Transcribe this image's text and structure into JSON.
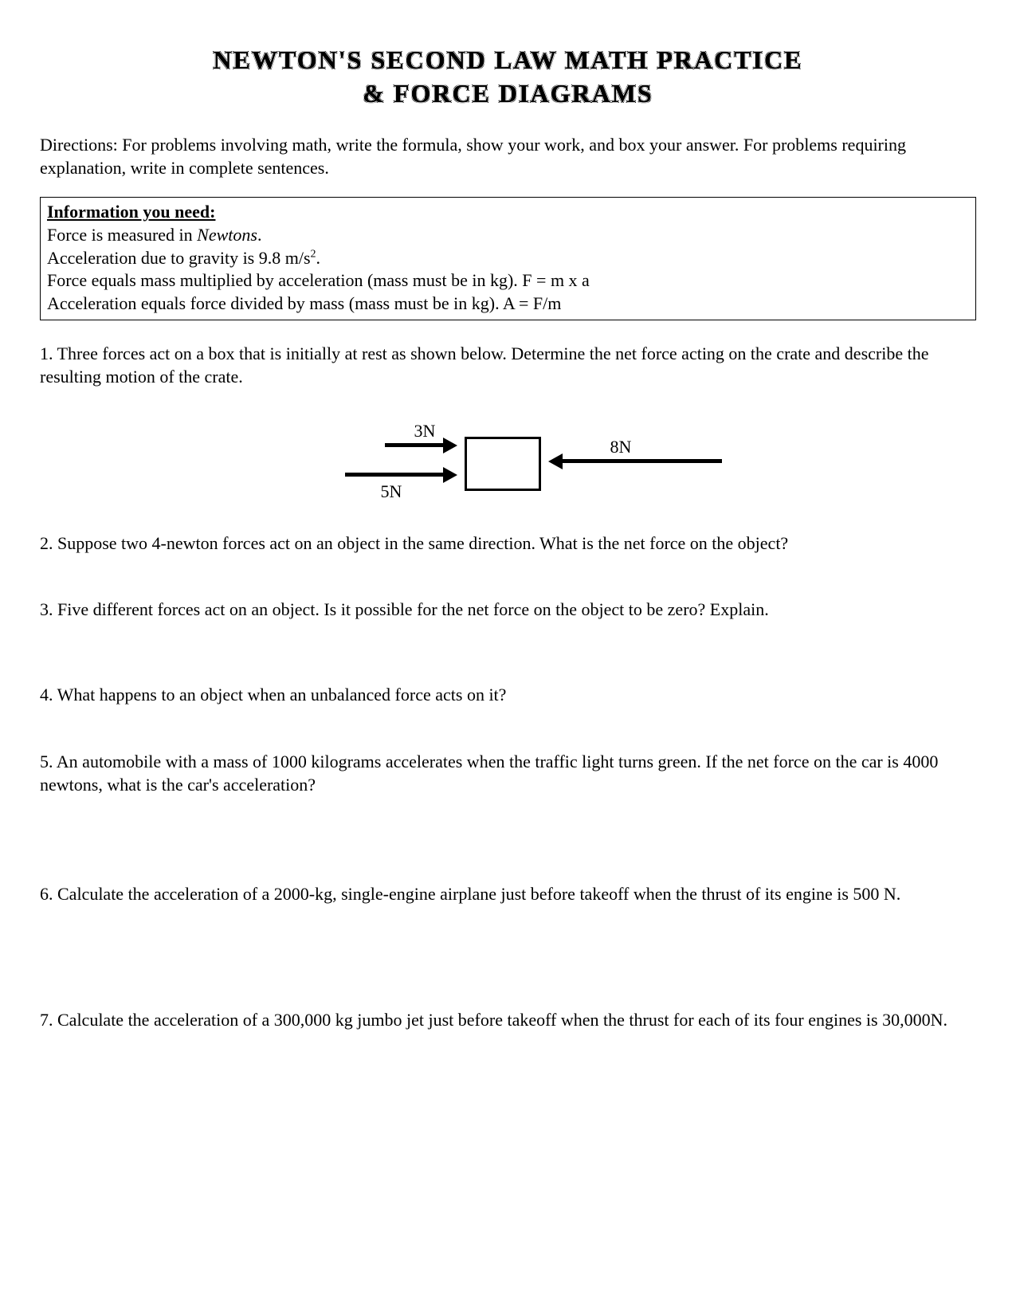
{
  "title": {
    "line1": "NEWTON'S SECOND LAW MATH PRACTICE",
    "line2": "& FORCE DIAGRAMS"
  },
  "directions": "Directions:  For problems involving math, write the formula, show your work, and box your answer.  For problems requiring explanation, write in complete sentences.",
  "info": {
    "heading": "Information you need:",
    "line1a": "Force is measured in ",
    "line1b": "Newtons",
    "line1c": ".",
    "line2a": "Acceleration due to gravity is 9.8 m/s",
    "line2b": "2",
    "line2c": ".",
    "line3": "Force equals mass multiplied by acceleration (mass must be in kg).  F = m x a",
    "line4": "Acceleration equals force divided by mass (mass must be in kg).  A = F/m"
  },
  "diagram": {
    "force1_label": "3N",
    "force2_label": "5N",
    "force3_label": "8N"
  },
  "questions": {
    "q1": "1.  Three forces act on a box that is initially at rest as shown below.  Determine the net force acting on the crate and describe the resulting motion of the crate.",
    "q2": "2.  Suppose two 4-newton forces act on an object in the same direction.  What is the net force on the object?",
    "q3": "3.  Five different forces act on an object.  Is it possible for the net force on the object to be zero?  Explain.",
    "q4": "4.  What happens to an object when an unbalanced force acts on it?",
    "q5": "5.  An automobile with a mass of 1000 kilograms accelerates when the traffic light turns green.  If the net force on the car is 4000 newtons, what is the car's acceleration?",
    "q6": "6.  Calculate the acceleration of a 2000-kg, single-engine airplane just before takeoff when the thrust of its engine is 500 N.",
    "q7": "7.  Calculate the acceleration of a 300,000 kg jumbo jet just before takeoff when the thrust for each of its four engines is 30,000N."
  }
}
